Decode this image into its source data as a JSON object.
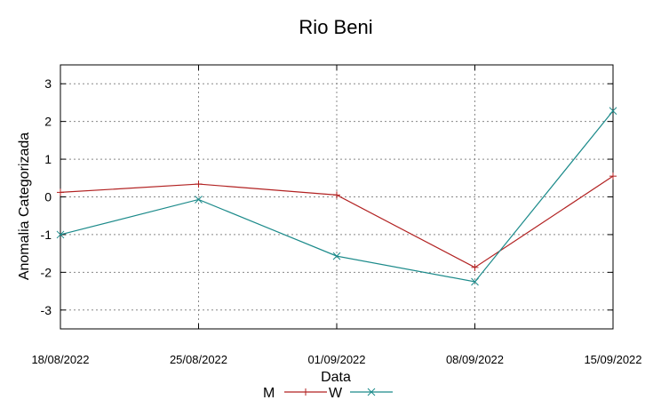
{
  "chart_data": {
    "type": "line",
    "title": "Rio Beni",
    "xlabel": "Data",
    "ylabel": "Anomalia Categorizada",
    "categories": [
      "18/08/2022",
      "25/08/2022",
      "01/09/2022",
      "08/09/2022",
      "15/09/2022"
    ],
    "ylim": [
      -3.5,
      3.5
    ],
    "yticks": [
      "3",
      "2",
      "1",
      "0",
      "-1",
      "-2",
      "-3"
    ],
    "ytick_values": [
      3,
      2,
      1,
      0,
      -1,
      -2,
      -3
    ],
    "grid": true,
    "legend_position": "bottom",
    "series": [
      {
        "name": "M",
        "values": [
          0.12,
          0.34,
          0.05,
          -1.87,
          0.55
        ],
        "color": "#b22222",
        "marker": "plus"
      },
      {
        "name": "W",
        "values": [
          -1.0,
          -0.07,
          -1.57,
          -2.25,
          2.28
        ],
        "color": "#1b8a8a",
        "marker": "cross"
      }
    ]
  }
}
